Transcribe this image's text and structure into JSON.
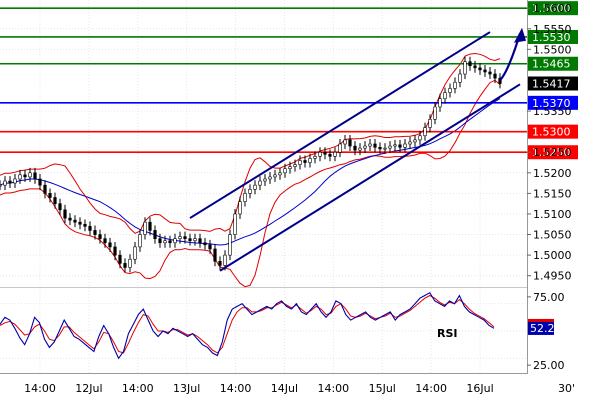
{
  "chart_data": {
    "type": "candlestick",
    "instrument_period": "30'",
    "time_labels": [
      "14:00",
      "12Jul",
      "14:00",
      "13Jul",
      "14:00",
      "14Jul",
      "14:00",
      "15Jul",
      "14:00",
      "16Jul"
    ],
    "price_axis": {
      "ylim": [
        1.4925,
        1.5615
      ],
      "ticks": [
        "1.5600",
        "1.5550",
        "1.5500",
        "1.5350",
        "1.5250",
        "1.5200",
        "1.5150",
        "1.5100",
        "1.5050",
        "1.5000",
        "1.4950"
      ]
    },
    "last_price": "1.5417",
    "levels": [
      {
        "value": 1.56,
        "label": "1.5600",
        "color": "#007a00"
      },
      {
        "value": 1.553,
        "label": "1.5530",
        "color": "#007a00"
      },
      {
        "value": 1.5465,
        "label": "1.5465",
        "color": "#007a00"
      },
      {
        "value": 1.537,
        "label": "1.5370",
        "color": "#0000ff"
      },
      {
        "value": 1.53,
        "label": "1.5300",
        "color": "#ff0000"
      },
      {
        "value": 1.525,
        "label": "1.5250",
        "color": "#ff0000"
      }
    ],
    "channel": {
      "upper": [
        [
          38,
          1.509
        ],
        [
          98,
          1.5542
        ]
      ],
      "lower": [
        [
          44,
          1.4962
        ],
        [
          104,
          1.5415
        ]
      ],
      "color": "#00008b"
    },
    "forecast_arrow": {
      "from": [
        100,
        1.5425
      ],
      "to": [
        104,
        1.5538
      ],
      "color": "#00008b"
    },
    "price_series_close": [
      1.517,
      1.518,
      1.5175,
      1.5185,
      1.5195,
      1.519,
      1.52,
      1.5185,
      1.517,
      1.515,
      1.514,
      1.5125,
      1.511,
      1.509,
      1.5085,
      1.508,
      1.5075,
      1.507,
      1.506,
      1.505,
      1.504,
      1.503,
      1.502,
      1.5,
      1.498,
      1.497,
      1.499,
      1.502,
      1.505,
      1.508,
      1.506,
      1.504,
      1.503,
      1.5035,
      1.503,
      1.504,
      1.5045,
      1.504,
      1.5035,
      1.504,
      1.503,
      1.5025,
      1.5015,
      1.4985,
      1.4975,
      1.5,
      1.505,
      1.51,
      1.513,
      1.515,
      1.516,
      1.517,
      1.518,
      1.5185,
      1.519,
      1.5195,
      1.52,
      1.521,
      1.5215,
      1.522,
      1.523,
      1.5225,
      1.5235,
      1.524,
      1.525,
      1.5245,
      1.524,
      1.525,
      1.527,
      1.528,
      1.5265,
      1.5255,
      1.526,
      1.5265,
      1.527,
      1.5262,
      1.5258,
      1.526,
      1.5265,
      1.5268,
      1.5262,
      1.527,
      1.5275,
      1.528,
      1.529,
      1.531,
      1.533,
      1.536,
      1.538,
      1.5395,
      1.5405,
      1.542,
      1.544,
      1.547,
      1.546,
      1.5455,
      1.545,
      1.5445,
      1.544,
      1.543,
      1.5417
    ],
    "rsi": {
      "label": "RSI",
      "last": "52.24",
      "ylim": [
        20,
        80
      ],
      "ticks": [
        "75.00",
        "25.00"
      ],
      "reference_lines": [
        70,
        50,
        30
      ],
      "values": [
        55,
        60,
        58,
        52,
        45,
        40,
        48,
        60,
        56,
        44,
        38,
        42,
        50,
        58,
        52,
        46,
        44,
        41,
        38,
        35,
        46,
        54,
        48,
        38,
        30,
        35,
        48,
        55,
        62,
        66,
        58,
        50,
        46,
        50,
        48,
        52,
        50,
        48,
        46,
        48,
        44,
        40,
        38,
        34,
        32,
        42,
        58,
        66,
        68,
        70,
        66,
        62,
        64,
        66,
        68,
        66,
        70,
        72,
        68,
        66,
        70,
        64,
        62,
        66,
        70,
        64,
        60,
        64,
        72,
        70,
        62,
        58,
        60,
        62,
        64,
        60,
        58,
        60,
        62,
        64,
        58,
        62,
        64,
        66,
        70,
        74,
        76,
        78,
        72,
        70,
        68,
        72,
        70,
        76,
        68,
        64,
        62,
        60,
        58,
        54,
        52
      ],
      "signal": [
        54,
        56,
        57,
        55,
        51,
        47,
        48,
        53,
        55,
        50,
        44,
        43,
        47,
        53,
        53,
        49,
        46,
        43,
        40,
        37,
        42,
        49,
        48,
        42,
        35,
        34,
        41,
        49,
        56,
        62,
        61,
        55,
        50,
        50,
        49,
        51,
        51,
        49,
        47,
        48,
        46,
        43,
        40,
        36,
        34,
        38,
        48,
        58,
        64,
        67,
        67,
        64,
        64,
        65,
        67,
        67,
        69,
        71,
        69,
        67,
        69,
        66,
        63,
        65,
        68,
        66,
        62,
        63,
        68,
        70,
        66,
        61,
        60,
        61,
        63,
        61,
        59,
        60,
        61,
        63,
        60,
        61,
        63,
        65,
        68,
        71,
        74,
        76,
        74,
        71,
        69,
        71,
        70,
        73,
        70,
        66,
        63,
        61,
        59,
        56,
        53
      ]
    },
    "bollinger_band": {
      "upper_color": "#e00000",
      "lower_color": "#e00000",
      "middle_color": "#0000cc"
    }
  }
}
